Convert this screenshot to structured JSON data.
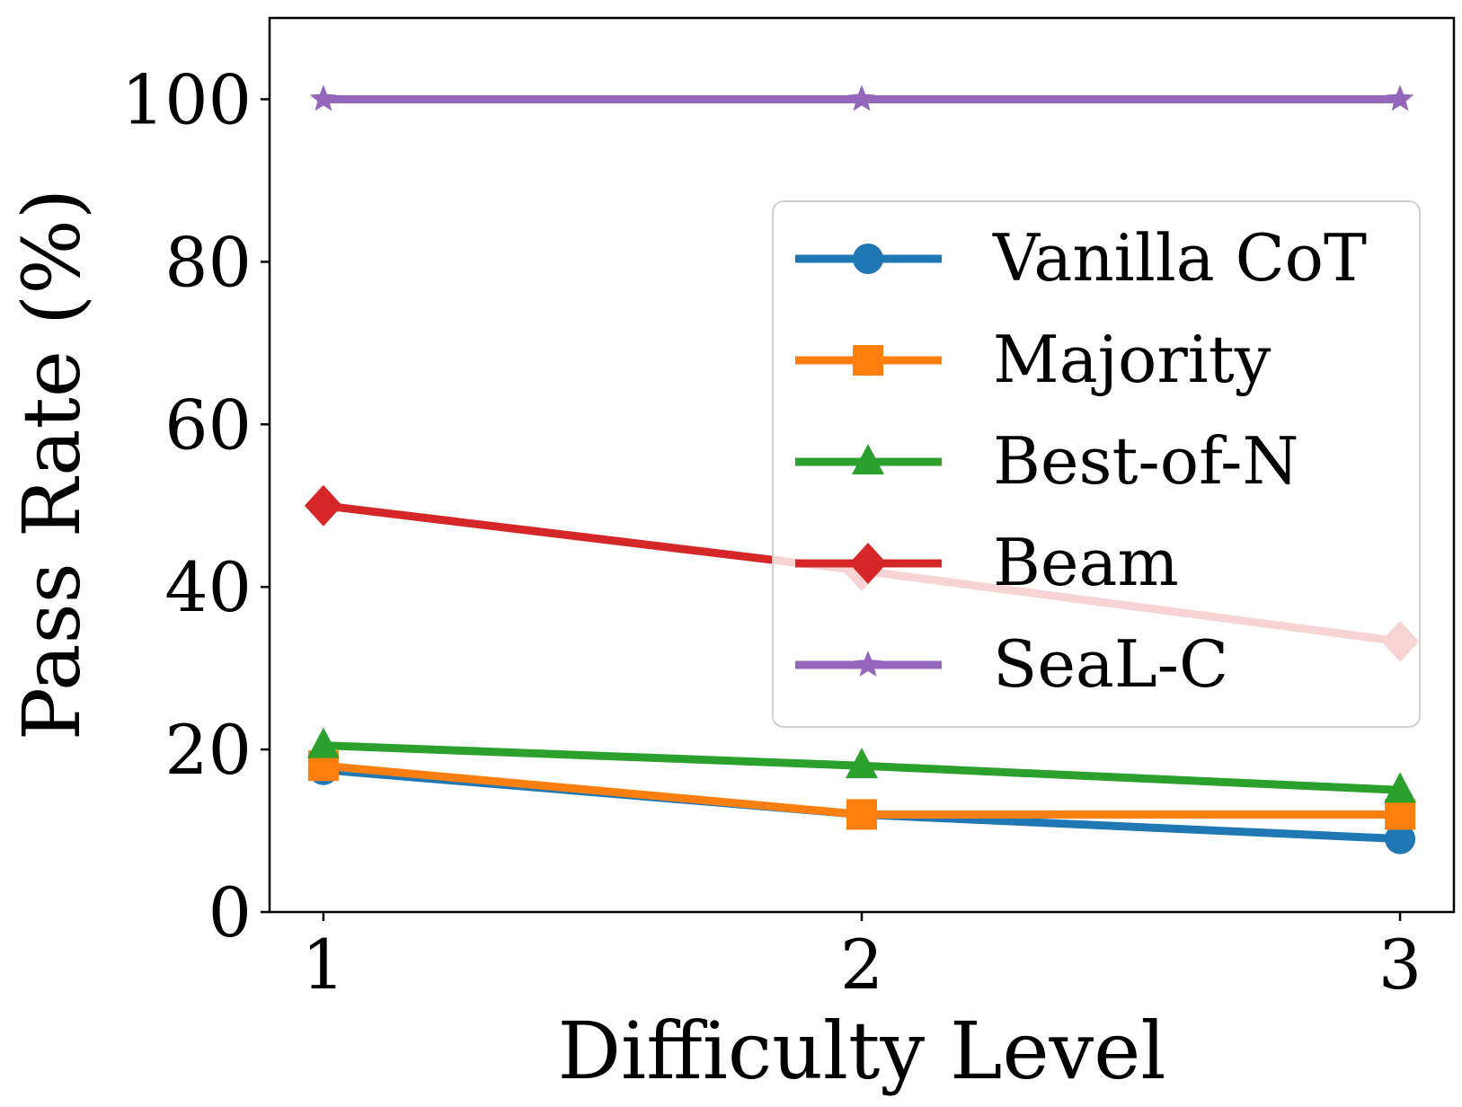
{
  "chart_data": {
    "type": "line",
    "title": "",
    "xlabel": "Difficulty Level",
    "ylabel": "Pass Rate (%)",
    "x": [
      1,
      2,
      3
    ],
    "xticks": [
      "1",
      "2",
      "3"
    ],
    "xlim": [
      0.9,
      3.1
    ],
    "yticks": [
      "0",
      "20",
      "40",
      "60",
      "80",
      "100"
    ],
    "ytick_values": [
      0,
      20,
      40,
      60,
      80,
      100
    ],
    "ylim": [
      0,
      110
    ],
    "grid": false,
    "legend_position": "center-right",
    "series": [
      {
        "name": "Vanilla CoT",
        "values": [
          17.5,
          12,
          9
        ],
        "color": "#1f77b4",
        "marker": "circle"
      },
      {
        "name": "Majority",
        "values": [
          18,
          12,
          12
        ],
        "color": "#ff7f0e",
        "marker": "square"
      },
      {
        "name": "Best-of-N",
        "values": [
          20.5,
          18,
          15
        ],
        "color": "#2ca02c",
        "marker": "triangle"
      },
      {
        "name": "Beam",
        "values": [
          50,
          42,
          33.3
        ],
        "color": "#d62728",
        "marker": "diamond"
      },
      {
        "name": "SeaL-C",
        "values": [
          100,
          100,
          100
        ],
        "color": "#9467bd",
        "marker": "star"
      }
    ]
  }
}
